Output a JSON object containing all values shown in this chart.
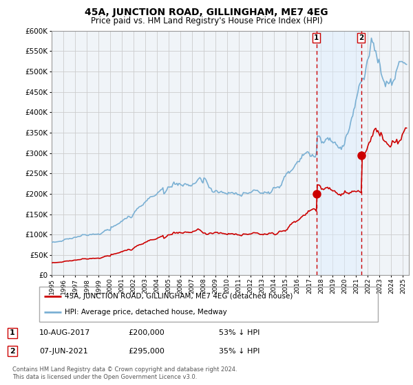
{
  "title": "45A, JUNCTION ROAD, GILLINGHAM, ME7 4EG",
  "subtitle": "Price paid vs. HM Land Registry's House Price Index (HPI)",
  "legend_entry1": "45A, JUNCTION ROAD, GILLINGHAM, ME7 4EG (detached house)",
  "legend_entry2": "HPI: Average price, detached house, Medway",
  "annotation1_label": "1",
  "annotation1_date": "10-AUG-2017",
  "annotation1_price": "£200,000",
  "annotation1_pct": "53% ↓ HPI",
  "annotation2_label": "2",
  "annotation2_date": "07-JUN-2021",
  "annotation2_price": "£295,000",
  "annotation2_pct": "35% ↓ HPI",
  "footer": "Contains HM Land Registry data © Crown copyright and database right 2024.\nThis data is licensed under the Open Government Licence v3.0.",
  "sale1_x": 2017.6,
  "sale1_y": 200000,
  "sale2_x": 2021.43,
  "sale2_y": 295000,
  "ylim": [
    0,
    600000
  ],
  "xlim": [
    1995.0,
    2025.5
  ],
  "yticks": [
    0,
    50000,
    100000,
    150000,
    200000,
    250000,
    300000,
    350000,
    400000,
    450000,
    500000,
    550000,
    600000
  ],
  "xticks": [
    1995,
    1996,
    1997,
    1998,
    1999,
    2000,
    2001,
    2002,
    2003,
    2004,
    2005,
    2006,
    2007,
    2008,
    2009,
    2010,
    2011,
    2012,
    2013,
    2014,
    2015,
    2016,
    2017,
    2018,
    2019,
    2020,
    2021,
    2022,
    2023,
    2024,
    2025
  ],
  "plot_bg": "#f0f4f8",
  "shade_color": "#ddeeff",
  "line_color_red": "#cc0000",
  "line_color_blue": "#7ab0d4",
  "marker_color_red": "#cc0000",
  "vline_color": "#cc0000",
  "grid_color": "#cccccc"
}
